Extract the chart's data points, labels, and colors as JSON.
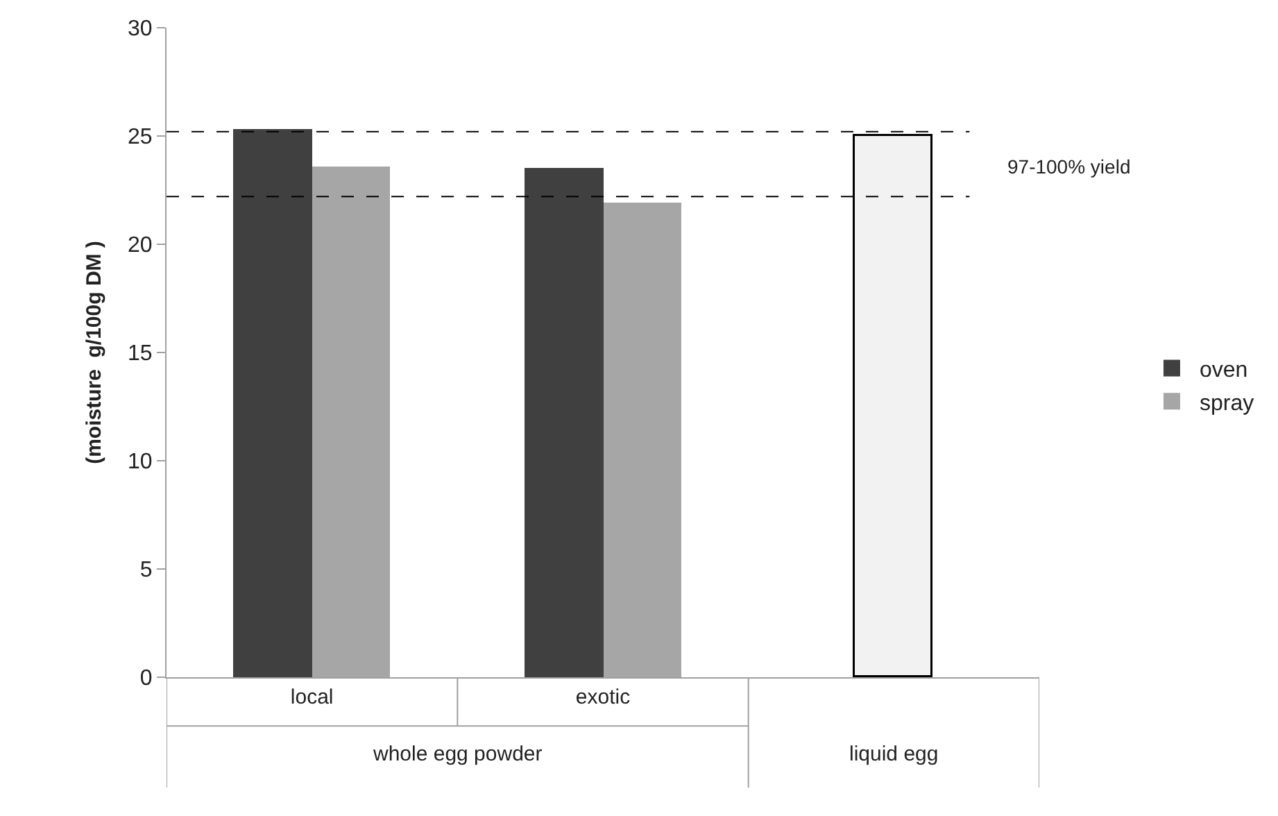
{
  "chart_data": {
    "type": "bar",
    "ylabel": "(moisture  g/100g DM )",
    "categories": [
      "local",
      "exotic",
      null
    ],
    "series": [
      {
        "name": "oven",
        "color": "#404040",
        "values": [
          25.3,
          23.5,
          null
        ]
      },
      {
        "name": "spray",
        "color": "#a6a6a6",
        "values": [
          23.6,
          21.9,
          null
        ]
      },
      {
        "color": "#f2f2f2",
        "values": [
          null,
          null,
          25.0
        ]
      }
    ],
    "ylim": [
      0,
      30
    ],
    "yticks": [
      0,
      5,
      10,
      15,
      20,
      25,
      30
    ],
    "legend": "right",
    "ref_lines": [
      {
        "axis": "y",
        "value": 25.2,
        "color": "#000000",
        "line_style": "dashed"
      },
      {
        "axis": "y",
        "value": 22.2,
        "label": "97-100% yield",
        "color": "#000000",
        "line_style": "dashed"
      }
    ],
    "annotations": [
      "whole egg powder",
      "liquid egg"
    ]
  }
}
